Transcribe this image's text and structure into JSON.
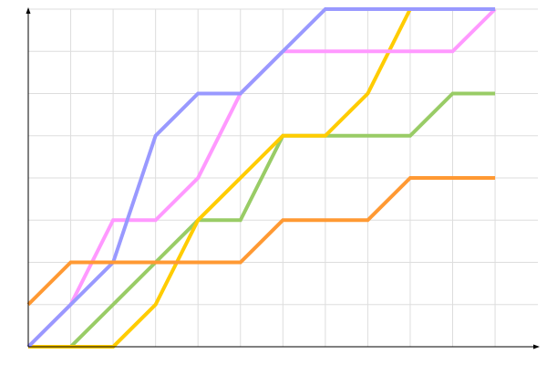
{
  "chart_data": {
    "type": "line",
    "title": "",
    "xlabel": "",
    "ylabel": "",
    "x": [
      0,
      1,
      2,
      3,
      4,
      5,
      6,
      7,
      8,
      9,
      10,
      11
    ],
    "xlim": [
      0,
      12
    ],
    "ylim": [
      0,
      8
    ],
    "grid": true,
    "legend": "none",
    "series": [
      {
        "color": "#99cc66",
        "values": [
          0,
          0,
          1,
          2,
          3,
          3,
          5,
          5,
          5,
          5,
          6,
          6
        ]
      },
      {
        "color": "#ffcc00",
        "values": [
          0,
          0,
          0,
          1,
          3,
          4,
          5,
          5,
          6,
          8,
          8,
          8
        ]
      },
      {
        "color": "#ff99ff",
        "values": [
          0,
          1,
          3,
          3,
          4,
          6,
          7,
          7,
          7,
          7,
          7,
          8
        ]
      },
      {
        "color": "#9999ff",
        "values": [
          0,
          1,
          2,
          5,
          6,
          6,
          7,
          8,
          8,
          8,
          8,
          8
        ]
      },
      {
        "color": "#ff9933",
        "values": [
          1,
          2,
          2,
          2,
          2,
          2,
          3,
          3,
          3,
          4,
          4,
          4
        ]
      }
    ]
  }
}
